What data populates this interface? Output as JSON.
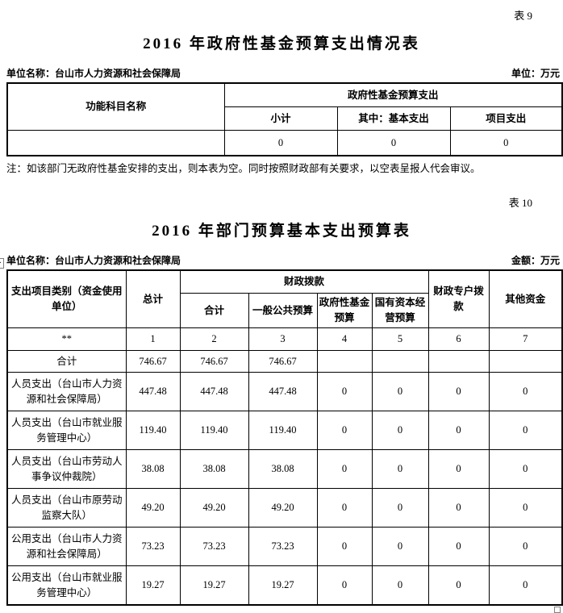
{
  "table9": {
    "tag": "表 9",
    "title": "2016 年政府性基金预算支出情况表",
    "meta_left": "单位名称：台山市人力资源和社会保障局",
    "meta_right": "单位：万元",
    "header": {
      "function_subject": "功能科目名称",
      "group": "政府性基金预算支出",
      "sub": [
        "小计",
        "其中：基本支出",
        "项目支出"
      ]
    },
    "data_row": [
      "",
      "0",
      "0",
      "0"
    ],
    "note": "注：如该部门无政府性基金安排的支出，则本表为空。同时按照财政部有关要求，以空表呈报人代会审议。"
  },
  "table10": {
    "tag": "表 10",
    "title": "2016 年部门预算基本支出预算表",
    "meta_left": "单位名称：台山市人力资源和社会保障局",
    "meta_right": "金额：万元",
    "header": {
      "category": "支出项目类别（资金使用单位）",
      "total": "总计",
      "fiscal_group": "财政拨款",
      "fiscal_sub": [
        "合计",
        "一般公共预算",
        "政府性基金预算",
        "国有资本经营预算"
      ],
      "special_account": "财政专户拨款",
      "other_funds": "其他资金"
    },
    "rows": [
      {
        "label": "**",
        "cells": [
          "1",
          "2",
          "3",
          "4",
          "5",
          "6",
          "7"
        ]
      },
      {
        "label": "合计",
        "cells": [
          "746.67",
          "746.67",
          "746.67",
          "",
          "",
          "",
          ""
        ]
      },
      {
        "label": "人员支出（台山市人力资源和社会保障局）",
        "cells": [
          "447.48",
          "447.48",
          "447.48",
          "0",
          "0",
          "0",
          "0"
        ]
      },
      {
        "label": "人员支出（台山市就业服务管理中心）",
        "cells": [
          "119.40",
          "119.40",
          "119.40",
          "0",
          "0",
          "0",
          "0"
        ]
      },
      {
        "label": "人员支出（台山市劳动人事争议仲裁院）",
        "cells": [
          "38.08",
          "38.08",
          "38.08",
          "0",
          "0",
          "0",
          "0"
        ]
      },
      {
        "label": "人员支出（台山市原劳动监察大队）",
        "cells": [
          "49.20",
          "49.20",
          "49.20",
          "0",
          "0",
          "0",
          "0"
        ]
      },
      {
        "label": "公用支出（台山市人力资源和社会保障局）",
        "cells": [
          "73.23",
          "73.23",
          "73.23",
          "0",
          "0",
          "0",
          "0"
        ]
      },
      {
        "label": "公用支出（台山市就业服务管理中心）",
        "cells": [
          "19.27",
          "19.27",
          "19.27",
          "0",
          "0",
          "0",
          "0"
        ]
      }
    ]
  }
}
